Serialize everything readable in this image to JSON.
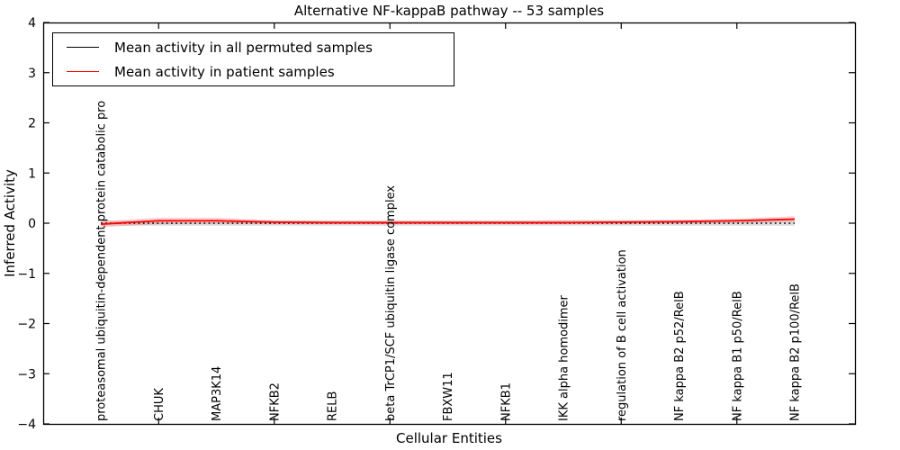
{
  "figure": {
    "title": "Alternative NF-kappaB pathway -- 53 samples",
    "xlabel": "Cellular Entities",
    "ylabel": "Inferred Activity"
  },
  "legend": {
    "entries": [
      {
        "label": "Mean activity in all permuted samples",
        "color": "#000000"
      },
      {
        "label": "Mean activity in patient samples",
        "color": "#ff0000"
      }
    ]
  },
  "chart_data": {
    "type": "line",
    "title": "Alternative NF-kappaB pathway -- 53 samples",
    "xlabel": "Cellular Entities",
    "ylabel": "Inferred Activity",
    "ylim": [
      -4,
      4
    ],
    "yticks": [
      4,
      3,
      2,
      1,
      0,
      -1,
      -2,
      -3,
      -4
    ],
    "ytick_labels": [
      "4",
      "3",
      "2",
      "1",
      "0",
      "−1",
      "−2",
      "−3",
      "−4"
    ],
    "grid": false,
    "legend_position": "upper left",
    "categories": [
      "proteasomal ubiquitin-dependent protein catabolic pro",
      "CHUK",
      "MAP3K14",
      "NFKB2",
      "RELB",
      "beta TrCP1/SCF ubiquitin ligase complex",
      "FBXW11",
      "NFKB1",
      "IKK alpha homodimer",
      "regulation of B cell activation",
      "NF kappa B2 p52/RelB",
      "NF kappa B1 p50/RelB",
      "NF kappa B2 p100/RelB"
    ],
    "xtick_marks_at_indices": [
      1,
      3,
      5,
      7,
      9,
      11
    ],
    "series": [
      {
        "name": "Mean activity in all permuted samples",
        "color": "#000000",
        "linestyle": "dotted",
        "values": [
          0.0,
          0.0,
          0.0,
          0.0,
          0.0,
          0.0,
          0.0,
          0.0,
          0.0,
          0.0,
          0.0,
          0.0,
          0.0
        ],
        "band_color": "rgba(0,0,0,0.13)",
        "band_upper": [
          0.05,
          0.05,
          0.05,
          0.05,
          0.05,
          0.05,
          0.05,
          0.05,
          0.05,
          0.05,
          0.05,
          0.05,
          0.05
        ],
        "band_lower": [
          -0.05,
          -0.05,
          -0.05,
          -0.05,
          -0.05,
          -0.05,
          -0.05,
          -0.05,
          -0.05,
          -0.05,
          -0.05,
          -0.05,
          -0.05
        ]
      },
      {
        "name": "Mean activity in patient samples",
        "color": "#ff0000",
        "linestyle": "solid",
        "values": [
          -0.02,
          0.05,
          0.05,
          0.02,
          0.01,
          0.01,
          0.01,
          0.01,
          0.01,
          0.02,
          0.03,
          0.05,
          0.08
        ],
        "band_color": "rgba(255,0,0,0.18)",
        "band_upper": [
          0.04,
          0.11,
          0.11,
          0.06,
          0.05,
          0.05,
          0.05,
          0.05,
          0.06,
          0.06,
          0.07,
          0.09,
          0.14
        ],
        "band_lower": [
          -0.08,
          -0.02,
          -0.01,
          -0.02,
          -0.02,
          -0.02,
          -0.02,
          -0.02,
          -0.02,
          -0.02,
          -0.01,
          0.0,
          0.03
        ]
      }
    ]
  }
}
